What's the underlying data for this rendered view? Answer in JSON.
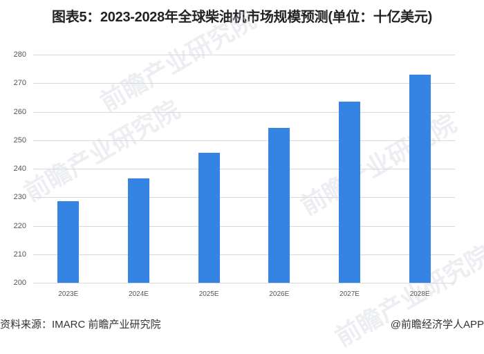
{
  "title": "图表5：2023-2028年全球柴油机市场规模预测(单位：十亿美元)",
  "footer": {
    "source": "资料来源：IMARC 前瞻产业研究院",
    "credit": "@前瞻经济学人APP"
  },
  "watermark": "前瞻产业研究院",
  "chart_data": {
    "type": "bar",
    "title": "2023-2028年全球柴油机市场规模预测(单位：十亿美元)",
    "xlabel": "",
    "ylabel": "十亿美元",
    "categories": [
      "2023E",
      "2024E",
      "2025E",
      "2026E",
      "2027E",
      "2028E"
    ],
    "values": [
      228.6,
      236.7,
      245.6,
      254.3,
      263.5,
      273.0
    ],
    "ylim": [
      200,
      280
    ],
    "yticks": [
      200,
      210,
      220,
      230,
      240,
      250,
      260,
      270,
      280
    ],
    "grid": true,
    "legend": "none",
    "bar_color": "#3584e4"
  }
}
